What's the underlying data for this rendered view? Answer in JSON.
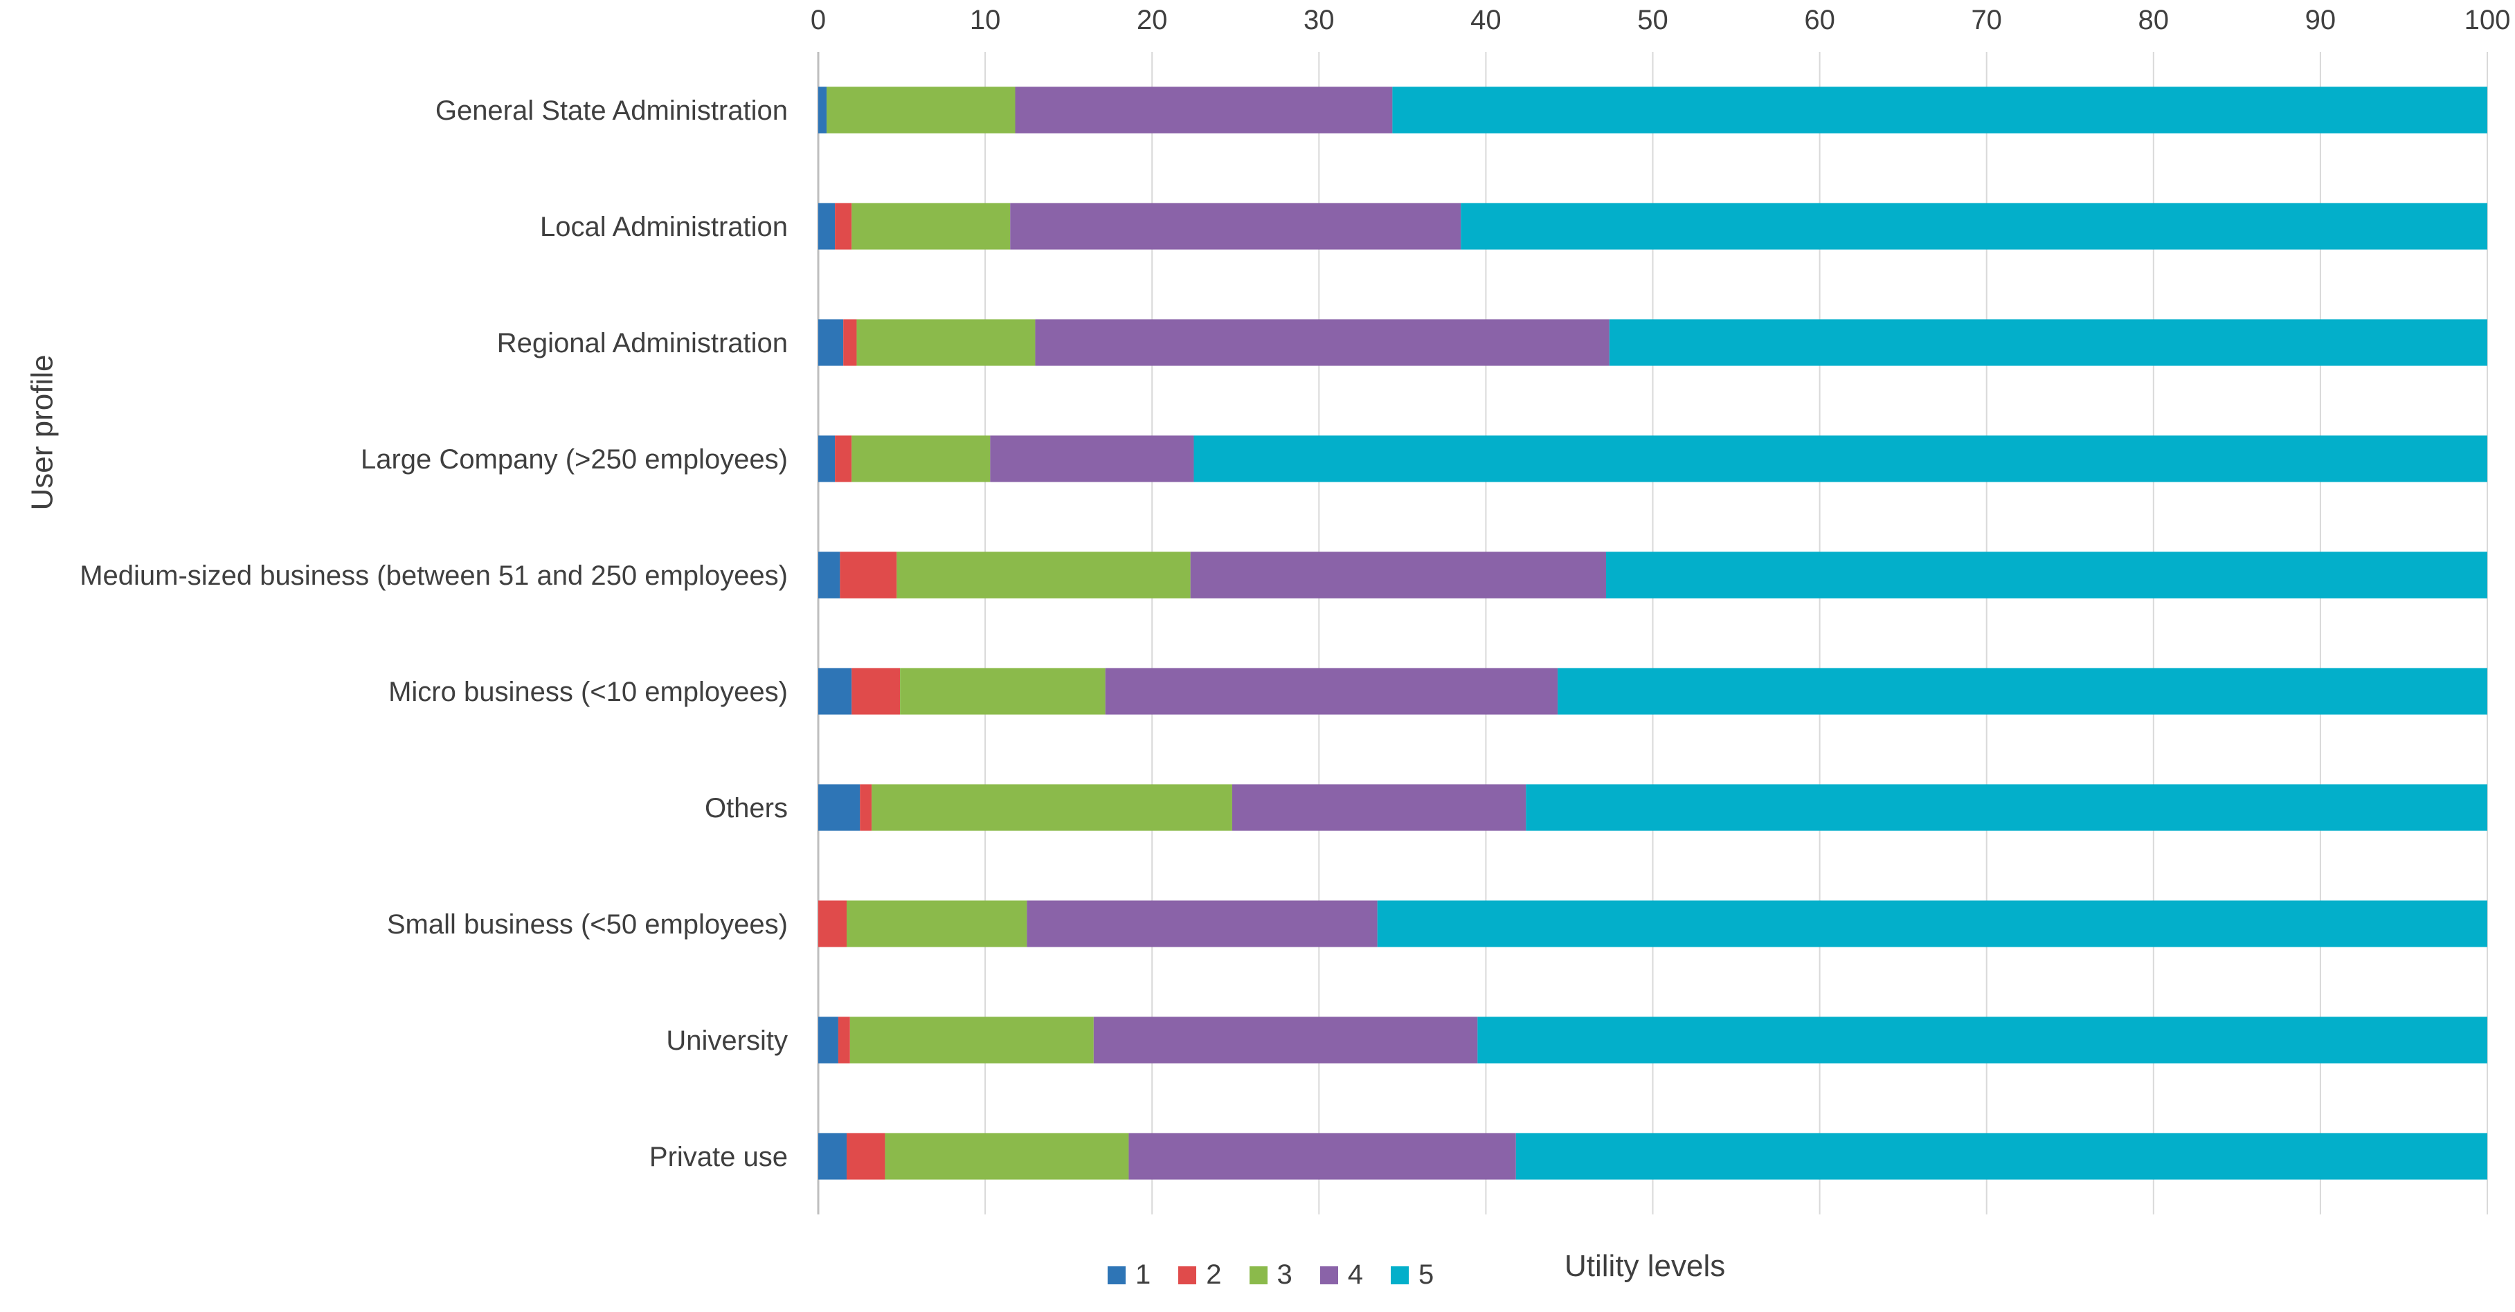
{
  "chart_data": {
    "type": "bar",
    "orientation": "horizontal",
    "stacked": true,
    "title": "",
    "xlabel": "Utility levels",
    "ylabel": "User profile",
    "xlim": [
      0,
      100
    ],
    "xticks": [
      "0",
      "10",
      "20",
      "30",
      "40",
      "50",
      "60",
      "70",
      "80",
      "90",
      "100"
    ],
    "x_axis_position": "top",
    "grid": true,
    "legend_position": "bottom",
    "categories": [
      "General State Administration",
      "Local Administration",
      "Regional Administration",
      "Large Company (>250 employees)",
      "Medium-sized business (between 51 and 250 employees)",
      "Micro business (<10 employees)",
      "Others",
      "Small business (<50 employees)",
      "University",
      "Private use"
    ],
    "series": [
      {
        "name": "1",
        "color": "#2e75b6",
        "values": [
          0.5,
          1.0,
          1.5,
          1.0,
          1.3,
          2.0,
          2.5,
          0.0,
          1.2,
          1.7
        ]
      },
      {
        "name": "2",
        "color": "#e04b4b",
        "values": [
          0.0,
          1.0,
          0.8,
          1.0,
          3.4,
          2.9,
          0.7,
          1.7,
          0.7,
          2.3
        ]
      },
      {
        "name": "3",
        "color": "#8bba4b",
        "values": [
          11.3,
          9.5,
          10.7,
          8.3,
          17.6,
          12.3,
          21.6,
          10.8,
          14.6,
          14.6
        ]
      },
      {
        "name": "4",
        "color": "#8a63a8",
        "values": [
          22.6,
          27.0,
          34.4,
          12.2,
          24.9,
          27.1,
          17.6,
          21.0,
          23.0,
          23.2
        ]
      },
      {
        "name": "5",
        "color": "#03afca",
        "values": [
          65.6,
          61.5,
          52.6,
          77.5,
          52.8,
          55.7,
          57.6,
          66.5,
          60.5,
          58.2
        ]
      }
    ]
  }
}
